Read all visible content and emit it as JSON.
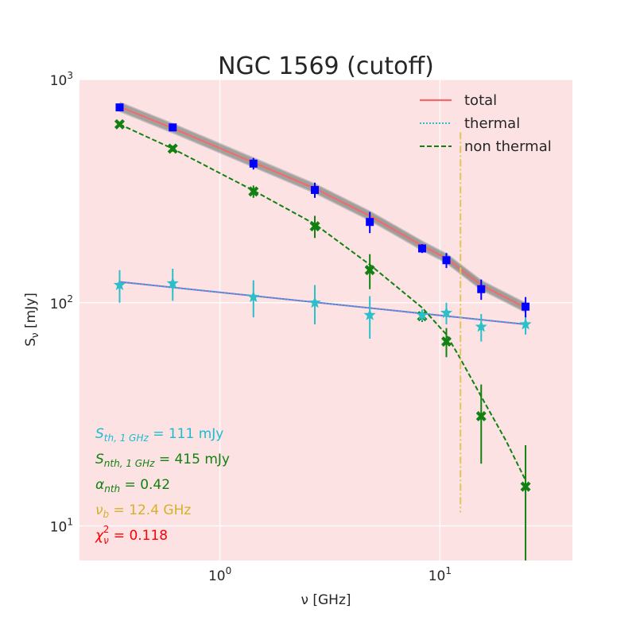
{
  "chart_data": {
    "type": "scatter",
    "title": "NGC 1569 (cutoff)",
    "xlabel": "ν [GHz]",
    "ylabel_main": "S",
    "ylabel_sub": "ν",
    "ylabel_unit": " [mJy]",
    "xscale": "log",
    "yscale": "log",
    "xlim": [
      0.23,
      40
    ],
    "ylim": [
      7,
      1000
    ],
    "x_ticks": [
      {
        "value": 1,
        "base": "10",
        "exp": "0"
      },
      {
        "value": 10,
        "base": "10",
        "exp": "1"
      }
    ],
    "y_ticks": [
      {
        "value": 10,
        "base": "10",
        "exp": "1"
      },
      {
        "value": 100,
        "base": "10",
        "exp": "2"
      },
      {
        "value": 1000,
        "base": "10",
        "exp": "3"
      }
    ],
    "colors": {
      "background": "#fde2e4",
      "grid": "#ffffff",
      "total": "#f26b6b",
      "model_band": "#5a6f6a",
      "thermal": "#2bbfc9",
      "thermal_fit": "#8e5fd6",
      "nonthermal": "#118111",
      "observed": "#0000ff",
      "break": "#e6c15c",
      "chi": "#ff0000"
    },
    "legend": {
      "position": "upper right",
      "entries": [
        {
          "label": "total",
          "style": "solid",
          "color": "#f26b6b"
        },
        {
          "label": "thermal",
          "style": "dotted",
          "color": "#2bbfc9"
        },
        {
          "label": "non thermal",
          "style": "dashed",
          "color": "#118111"
        }
      ]
    },
    "series": [
      {
        "name": "total (observed)",
        "marker": "square",
        "color": "#0000ff",
        "x": [
          0.35,
          0.61,
          1.42,
          2.7,
          4.8,
          8.3,
          10.7,
          15.4,
          24.5
        ],
        "y": [
          750,
          610,
          420,
          320,
          230,
          175,
          155,
          115,
          96
        ],
        "err": [
          15,
          20,
          25,
          25,
          25,
          8,
          12,
          12,
          10
        ]
      },
      {
        "name": "thermal (data)",
        "marker": "star",
        "color": "#2bbfc9",
        "x": [
          0.35,
          0.61,
          1.42,
          2.7,
          4.8,
          8.3,
          10.7,
          15.4,
          24.5
        ],
        "y": [
          120,
          122,
          106,
          100,
          88,
          88,
          90,
          78,
          80
        ],
        "err": [
          20,
          20,
          20,
          20,
          19,
          5,
          10,
          11,
          8
        ]
      },
      {
        "name": "non thermal (data)",
        "marker": "x",
        "color": "#118111",
        "x": [
          0.35,
          0.61,
          1.42,
          2.7,
          4.8,
          8.3,
          10.7,
          15.4,
          24.5
        ],
        "y": [
          630,
          490,
          315,
          220,
          140,
          87,
          67,
          31,
          15
        ],
        "err": [
          15,
          15,
          20,
          25,
          25,
          5,
          10,
          12,
          8
        ]
      }
    ],
    "models": {
      "total": {
        "x": [
          0.35,
          0.61,
          1.42,
          2.7,
          4.8,
          8.3,
          10.7,
          15.4,
          24.5
        ],
        "y": [
          755,
          605,
          425,
          325,
          245,
          180,
          158,
          120,
          95
        ]
      },
      "thermal": {
        "x": [
          0.35,
          24.5
        ],
        "y": [
          124,
          80
        ]
      },
      "nonthermal": {
        "x": [
          0.35,
          0.61,
          1.42,
          2.7,
          4.8,
          8.3,
          10.7,
          12.4,
          15.4,
          20,
          24.5
        ],
        "y": [
          630,
          490,
          318,
          225,
          148,
          95,
          72,
          56,
          38,
          24,
          16
        ]
      }
    },
    "break_frequency_ghz": 12.4,
    "break_line_y": [
      11.5,
      580
    ],
    "annotations": [
      {
        "main": "S",
        "sub": "th, 1 GHz",
        "value": " = 111 mJy",
        "color": "#17becf"
      },
      {
        "main": "S",
        "sub": "nth, 1 GHz",
        "value": " = 415 mJy",
        "color": "#118111"
      },
      {
        "main": "α",
        "sub": "nth",
        "value": " = 0.42",
        "color": "#118111"
      },
      {
        "main": "ν",
        "sub": "b",
        "value": " = 12.4 GHz",
        "color": "#d4b12a"
      },
      {
        "main": "χ",
        "sub": "ν",
        "sup": "2",
        "value": " = 0.118",
        "color": "#ff0000"
      }
    ]
  }
}
